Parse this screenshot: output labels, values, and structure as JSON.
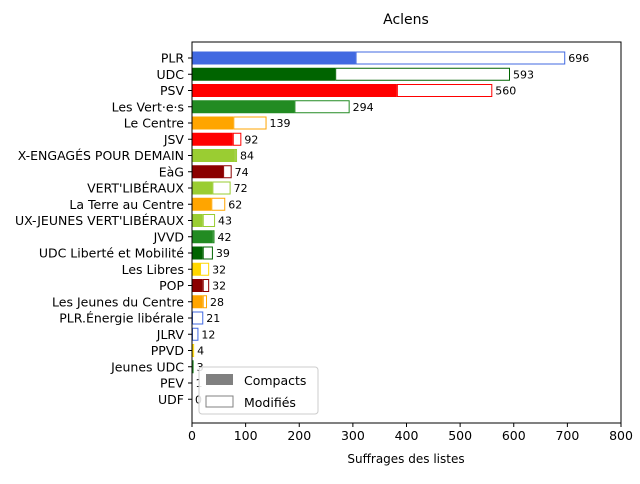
{
  "chart_data": {
    "type": "bar",
    "orientation": "horizontal",
    "stacked": true,
    "title": "Aclens",
    "xlabel": "Suffrages des listes",
    "ylabel": "",
    "xlim": [
      0,
      800
    ],
    "xticks": [
      "0",
      "100",
      "200",
      "300",
      "400",
      "500",
      "600",
      "700",
      "800"
    ],
    "grid": false,
    "legend_position": "lower-left",
    "legend": [
      {
        "label": "Compacts",
        "style": "filled",
        "color": "#808080"
      },
      {
        "label": "Modifiés",
        "style": "outline",
        "color": "#808080"
      }
    ],
    "categories": [
      "PLR",
      "UDC",
      "PSV",
      "Les Vert·e·s",
      "Le Centre",
      "JSV",
      "X-ENGAGÉS POUR DEMAIN",
      "EàG",
      "VERT'LIBÉRAUX",
      "La Terre au Centre",
      "UX-JEUNES VERT'LIBÉRAUX",
      "JVVD",
      "UDC Liberté et Mobilité",
      "Les Libres",
      "POP",
      "Les Jeunes du Centre",
      "PLR.Énergie libérale",
      "JLRV",
      "PPVD",
      "Jeunes UDC",
      "PEV",
      "UDF"
    ],
    "series": [
      {
        "name": "Compacts",
        "values": [
          305,
          267,
          382,
          191,
          77,
          76,
          80,
          58,
          38,
          36,
          20,
          38,
          20,
          15,
          20,
          20,
          0,
          0,
          0,
          3,
          0,
          0
        ]
      },
      {
        "name": "Modifiés",
        "values": [
          391,
          326,
          178,
          103,
          62,
          16,
          4,
          16,
          34,
          26,
          23,
          4,
          19,
          17,
          12,
          8,
          21,
          12,
          4,
          0,
          1,
          0
        ]
      }
    ],
    "totals": [
      "696",
      "593",
      "560",
      "294",
      "139",
      "92",
      "84",
      "74",
      "72",
      "62",
      "43",
      "42",
      "39",
      "32",
      "32",
      "28",
      "21",
      "12",
      "4",
      "3",
      "1",
      "0"
    ],
    "colors": [
      "#4169e1",
      "#006400",
      "#ff0000",
      "#228b22",
      "#ffa500",
      "#ff0000",
      "#9acd32",
      "#8b0000",
      "#9acd32",
      "#ffa500",
      "#9acd32",
      "#228b22",
      "#006400",
      "#ffd700",
      "#8b0000",
      "#ffa500",
      "#4169e1",
      "#4169e1",
      "#ffd700",
      "#228b22",
      "#ffd700",
      "#4169e1"
    ]
  }
}
